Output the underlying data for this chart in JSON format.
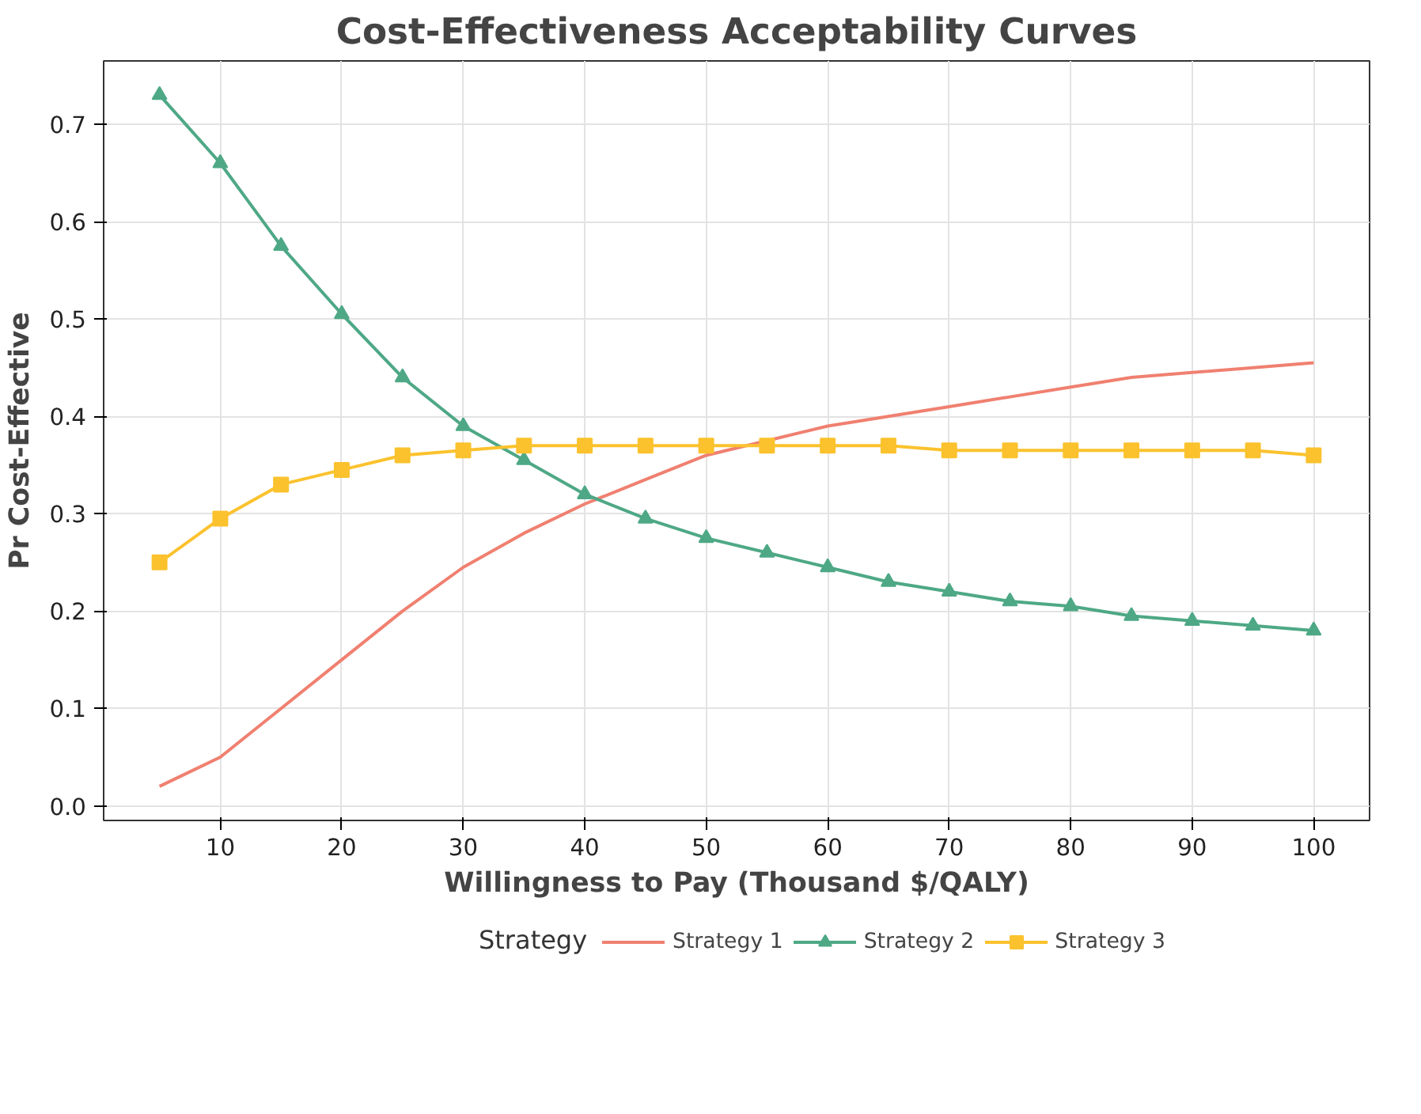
{
  "chart_data": {
    "type": "line",
    "title": "Cost-Effectiveness Acceptability Curves",
    "xlabel": "Willingness to Pay (Thousand $/QALY)",
    "ylabel": "Pr Cost-Effective",
    "legend_title": "Strategy",
    "x": [
      5,
      10,
      15,
      20,
      25,
      30,
      35,
      40,
      45,
      50,
      55,
      60,
      65,
      70,
      75,
      80,
      85,
      90,
      95,
      100
    ],
    "series": [
      {
        "name": "Strategy 1",
        "color": "#f08070",
        "marker": "none",
        "values": [
          0.02,
          0.05,
          0.1,
          0.15,
          0.2,
          0.245,
          0.28,
          0.31,
          0.335,
          0.36,
          0.375,
          0.39,
          0.4,
          0.41,
          0.42,
          0.43,
          0.44,
          0.445,
          0.45,
          0.455
        ]
      },
      {
        "name": "Strategy 2",
        "color": "#4ea886",
        "marker": "triangle",
        "values": [
          0.73,
          0.66,
          0.575,
          0.505,
          0.44,
          0.39,
          0.355,
          0.32,
          0.295,
          0.275,
          0.26,
          0.245,
          0.23,
          0.22,
          0.21,
          0.205,
          0.195,
          0.19,
          0.185,
          0.18
        ]
      },
      {
        "name": "Strategy 3",
        "color": "#fbc22e",
        "marker": "square",
        "values": [
          0.25,
          0.295,
          0.33,
          0.345,
          0.36,
          0.365,
          0.37,
          0.37,
          0.37,
          0.37,
          0.37,
          0.37,
          0.37,
          0.365,
          0.365,
          0.365,
          0.365,
          0.365,
          0.365,
          0.36
        ]
      }
    ],
    "xlim": [
      0.4,
      104.6
    ],
    "ylim": [
      -0.015,
      0.765
    ],
    "xticks": [
      10,
      20,
      30,
      40,
      50,
      60,
      70,
      80,
      90,
      100
    ],
    "yticks": [
      {
        "value": 0,
        "label": "0.0"
      },
      0.1,
      0.2,
      0.3,
      0.4,
      0.5,
      0.6,
      0.7
    ],
    "grid": true,
    "legend": "bottom",
    "line_style": "solid"
  }
}
